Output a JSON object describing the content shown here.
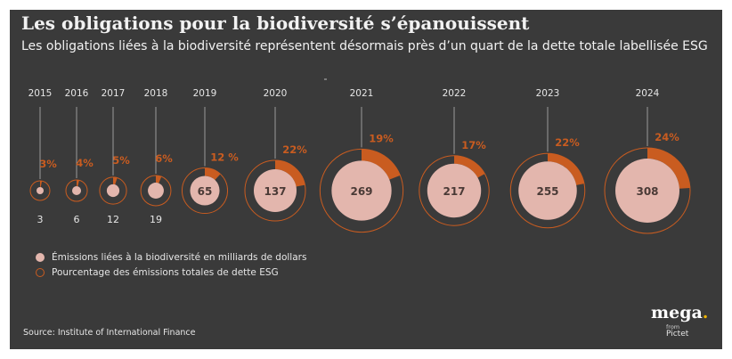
{
  "header": {
    "title": "Les obligations pour la biodiversité s’épanouissent",
    "subtitle": "Les obligations liées à la biodiversité représentent désormais près d’un quart de la dette totale labellisée ESG"
  },
  "legend": {
    "items": [
      {
        "label": "Émissions liées à la biodiversité en milliards de dollars",
        "style": "filled",
        "color": "#e3b6ad"
      },
      {
        "label": "Pourcentage des émissions totales de dette ESG",
        "style": "ring",
        "color": "#c95c20"
      }
    ]
  },
  "source": "Source: Institute of International Finance",
  "logo": {
    "word": "mega",
    "dot": ".",
    "from": "from",
    "brand": "Pictet"
  },
  "chart_data": {
    "type": "bubble-donut",
    "x": [
      "2015",
      "2016",
      "2017",
      "2018",
      "2019",
      "2020",
      "2021",
      "2022",
      "2023",
      "2024"
    ],
    "series": [
      {
        "name": "Émissions liées à la biodiversité en milliards de dollars",
        "values": [
          3,
          6,
          12,
          19,
          65,
          137,
          269,
          217,
          255,
          308
        ]
      },
      {
        "name": "Pourcentage des émissions totales de dette ESG",
        "values": [
          3,
          4,
          5,
          6,
          12,
          22,
          19,
          17,
          22,
          24
        ]
      }
    ],
    "value_labels": [
      "3",
      "6",
      "12",
      "19",
      "65",
      "137",
      "269",
      "217",
      "255",
      "308"
    ],
    "percent_labels": [
      "3%",
      "4%",
      "5%",
      "6%",
      "12 %",
      "22%",
      "19%",
      "17%",
      "22%",
      "24%"
    ],
    "colors": {
      "bubble": "#e3b6ad",
      "arc": "#c95c20",
      "ring": "#c95c20",
      "text": "#e6e6e6"
    }
  }
}
